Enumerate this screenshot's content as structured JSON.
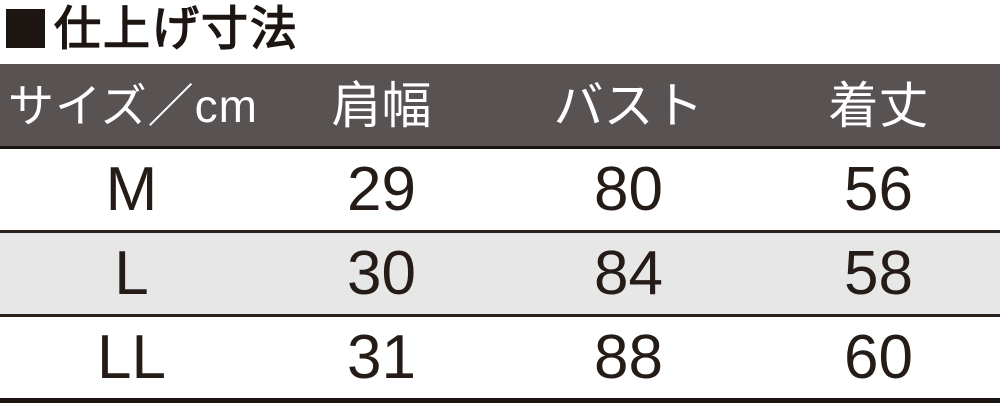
{
  "title": {
    "marker_icon": "black-square-icon",
    "text": "仕上げ寸法"
  },
  "table": {
    "headers": [
      "サイズ／cm",
      "肩幅",
      "バスト",
      "着丈"
    ],
    "rows": [
      [
        "M",
        "29",
        "80",
        "56"
      ],
      [
        "L",
        "30",
        "84",
        "58"
      ],
      [
        "LL",
        "31",
        "88",
        "60"
      ]
    ]
  },
  "colors": {
    "header_bg": "#585352",
    "header_text": "#ffffff",
    "alt_row_bg": "#e7e7e8",
    "border": "#1c1512",
    "text": "#251c18"
  }
}
